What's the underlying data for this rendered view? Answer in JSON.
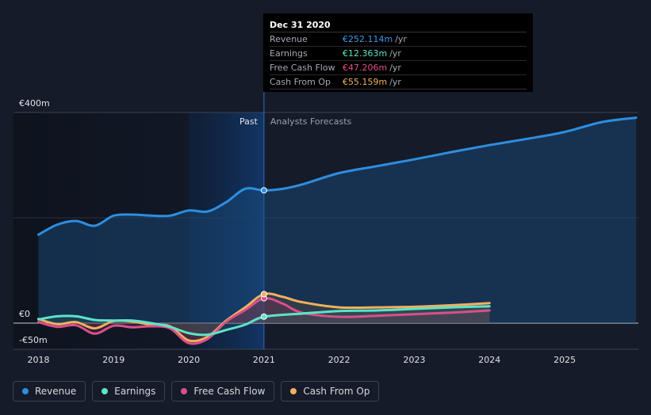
{
  "tooltip": {
    "date": "Dec 31 2020",
    "rows": [
      {
        "label": "Revenue",
        "value": "€252.114m",
        "unit": "/yr",
        "color": "#3b9be8"
      },
      {
        "label": "Earnings",
        "value": "€12.363m",
        "unit": "/yr",
        "color": "#5ee3c8"
      },
      {
        "label": "Free Cash Flow",
        "value": "€47.206m",
        "unit": "/yr",
        "color": "#e0508c"
      },
      {
        "label": "Cash From Op",
        "value": "€55.159m",
        "unit": "/yr",
        "color": "#f0b060"
      }
    ]
  },
  "legend": [
    {
      "label": "Revenue",
      "color": "#2d8ee0"
    },
    {
      "label": "Earnings",
      "color": "#5ee3c8"
    },
    {
      "label": "Free Cash Flow",
      "color": "#d8508a"
    },
    {
      "label": "Cash From Op",
      "color": "#f0b060"
    }
  ],
  "chart_data": {
    "type": "line",
    "title": "",
    "xlabel": "",
    "ylabel": "",
    "xlim": [
      2017.9,
      2025.95
    ],
    "ylim": [
      -50,
      400
    ],
    "y_tick_labels": [
      {
        "value": 400,
        "label": "€400m"
      },
      {
        "value": 0,
        "label": "€0"
      },
      {
        "value": -50,
        "label": "-€50m"
      }
    ],
    "x_ticks": [
      "2018",
      "2019",
      "2020",
      "2021",
      "2022",
      "2023",
      "2024",
      "2025"
    ],
    "divider_x": 2021.0,
    "past_label": "Past",
    "forecast_label": "Analysts Forecasts",
    "highlight_band": [
      2020.0,
      2021.0
    ],
    "series": [
      {
        "name": "Revenue",
        "color": "#2d8ee0",
        "x": [
          2018.0,
          2018.25,
          2018.5,
          2018.75,
          2019.0,
          2019.25,
          2019.5,
          2019.75,
          2020.0,
          2020.25,
          2020.5,
          2020.75,
          2021.0,
          2021.25,
          2021.5,
          2022.0,
          2022.5,
          2023.0,
          2023.5,
          2024.0,
          2024.5,
          2025.0,
          2025.5,
          2025.95
        ],
        "values": [
          168,
          187,
          194,
          185,
          204,
          206,
          204,
          204,
          214,
          212,
          230,
          255,
          252,
          255,
          263,
          285,
          298,
          311,
          325,
          338,
          350,
          363,
          382,
          390
        ]
      },
      {
        "name": "Earnings",
        "color": "#5ee3c8",
        "x": [
          2018.0,
          2018.25,
          2018.5,
          2018.75,
          2019.0,
          2019.25,
          2019.5,
          2019.75,
          2020.0,
          2020.25,
          2020.5,
          2020.75,
          2021.0,
          2021.5,
          2022.0,
          2022.5,
          2023.0,
          2023.5,
          2024.0
        ],
        "values": [
          7,
          13,
          13,
          6,
          5,
          5,
          0,
          -7,
          -19,
          -22,
          -13,
          -3,
          12,
          18,
          23,
          24,
          27,
          30,
          32
        ]
      },
      {
        "name": "Free Cash Flow",
        "color": "#d8508a",
        "x": [
          2018.0,
          2018.25,
          2018.5,
          2018.75,
          2019.0,
          2019.25,
          2019.5,
          2019.75,
          2020.0,
          2020.25,
          2020.5,
          2020.75,
          2021.0,
          2021.25,
          2021.5,
          2022.0,
          2022.5,
          2023.0,
          2023.5,
          2024.0
        ],
        "values": [
          2,
          -7,
          -4,
          -20,
          -5,
          -8,
          -6,
          -10,
          -38,
          -30,
          3,
          25,
          47,
          37,
          20,
          12,
          14,
          17,
          20,
          24
        ]
      },
      {
        "name": "Cash From Op",
        "color": "#f0b060",
        "x": [
          2018.0,
          2018.25,
          2018.5,
          2018.75,
          2019.0,
          2019.25,
          2019.5,
          2019.75,
          2020.0,
          2020.25,
          2020.5,
          2020.75,
          2021.0,
          2021.25,
          2021.5,
          2022.0,
          2022.5,
          2023.0,
          2023.5,
          2024.0
        ],
        "values": [
          8,
          -2,
          2,
          -10,
          4,
          3,
          -3,
          -6,
          -33,
          -26,
          5,
          30,
          55,
          50,
          40,
          30,
          30,
          31,
          34,
          38
        ]
      }
    ],
    "markers": [
      {
        "series": "Revenue",
        "x": 2021.0,
        "value": 252.114
      },
      {
        "series": "Earnings",
        "x": 2021.0,
        "value": 12.363
      },
      {
        "series": "Free Cash Flow",
        "x": 2021.0,
        "value": 47.206
      },
      {
        "series": "Cash From Op",
        "x": 2021.0,
        "value": 55.159
      }
    ]
  }
}
